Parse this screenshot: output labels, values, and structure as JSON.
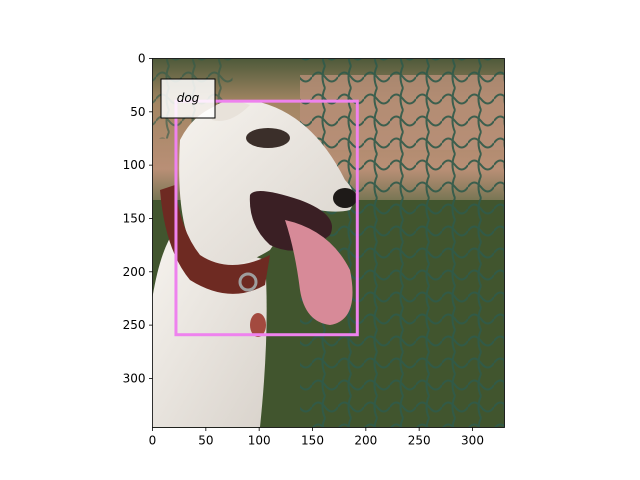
{
  "image": {
    "width": 330,
    "height": 346,
    "subject": "white greyhound with brown collar, mouth open, tongue out, in front of a green net fence"
  },
  "axes": {
    "xlim": [
      0,
      330
    ],
    "ylim": [
      346,
      0
    ],
    "xticks": [
      0,
      50,
      100,
      150,
      200,
      250,
      300
    ],
    "yticks": [
      0,
      50,
      100,
      150,
      200,
      250,
      300
    ]
  },
  "detections": [
    {
      "label": "dog",
      "box": {
        "x1": 22,
        "y1": 40,
        "x2": 192,
        "y2": 259
      },
      "color": "#ee82ee"
    }
  ]
}
